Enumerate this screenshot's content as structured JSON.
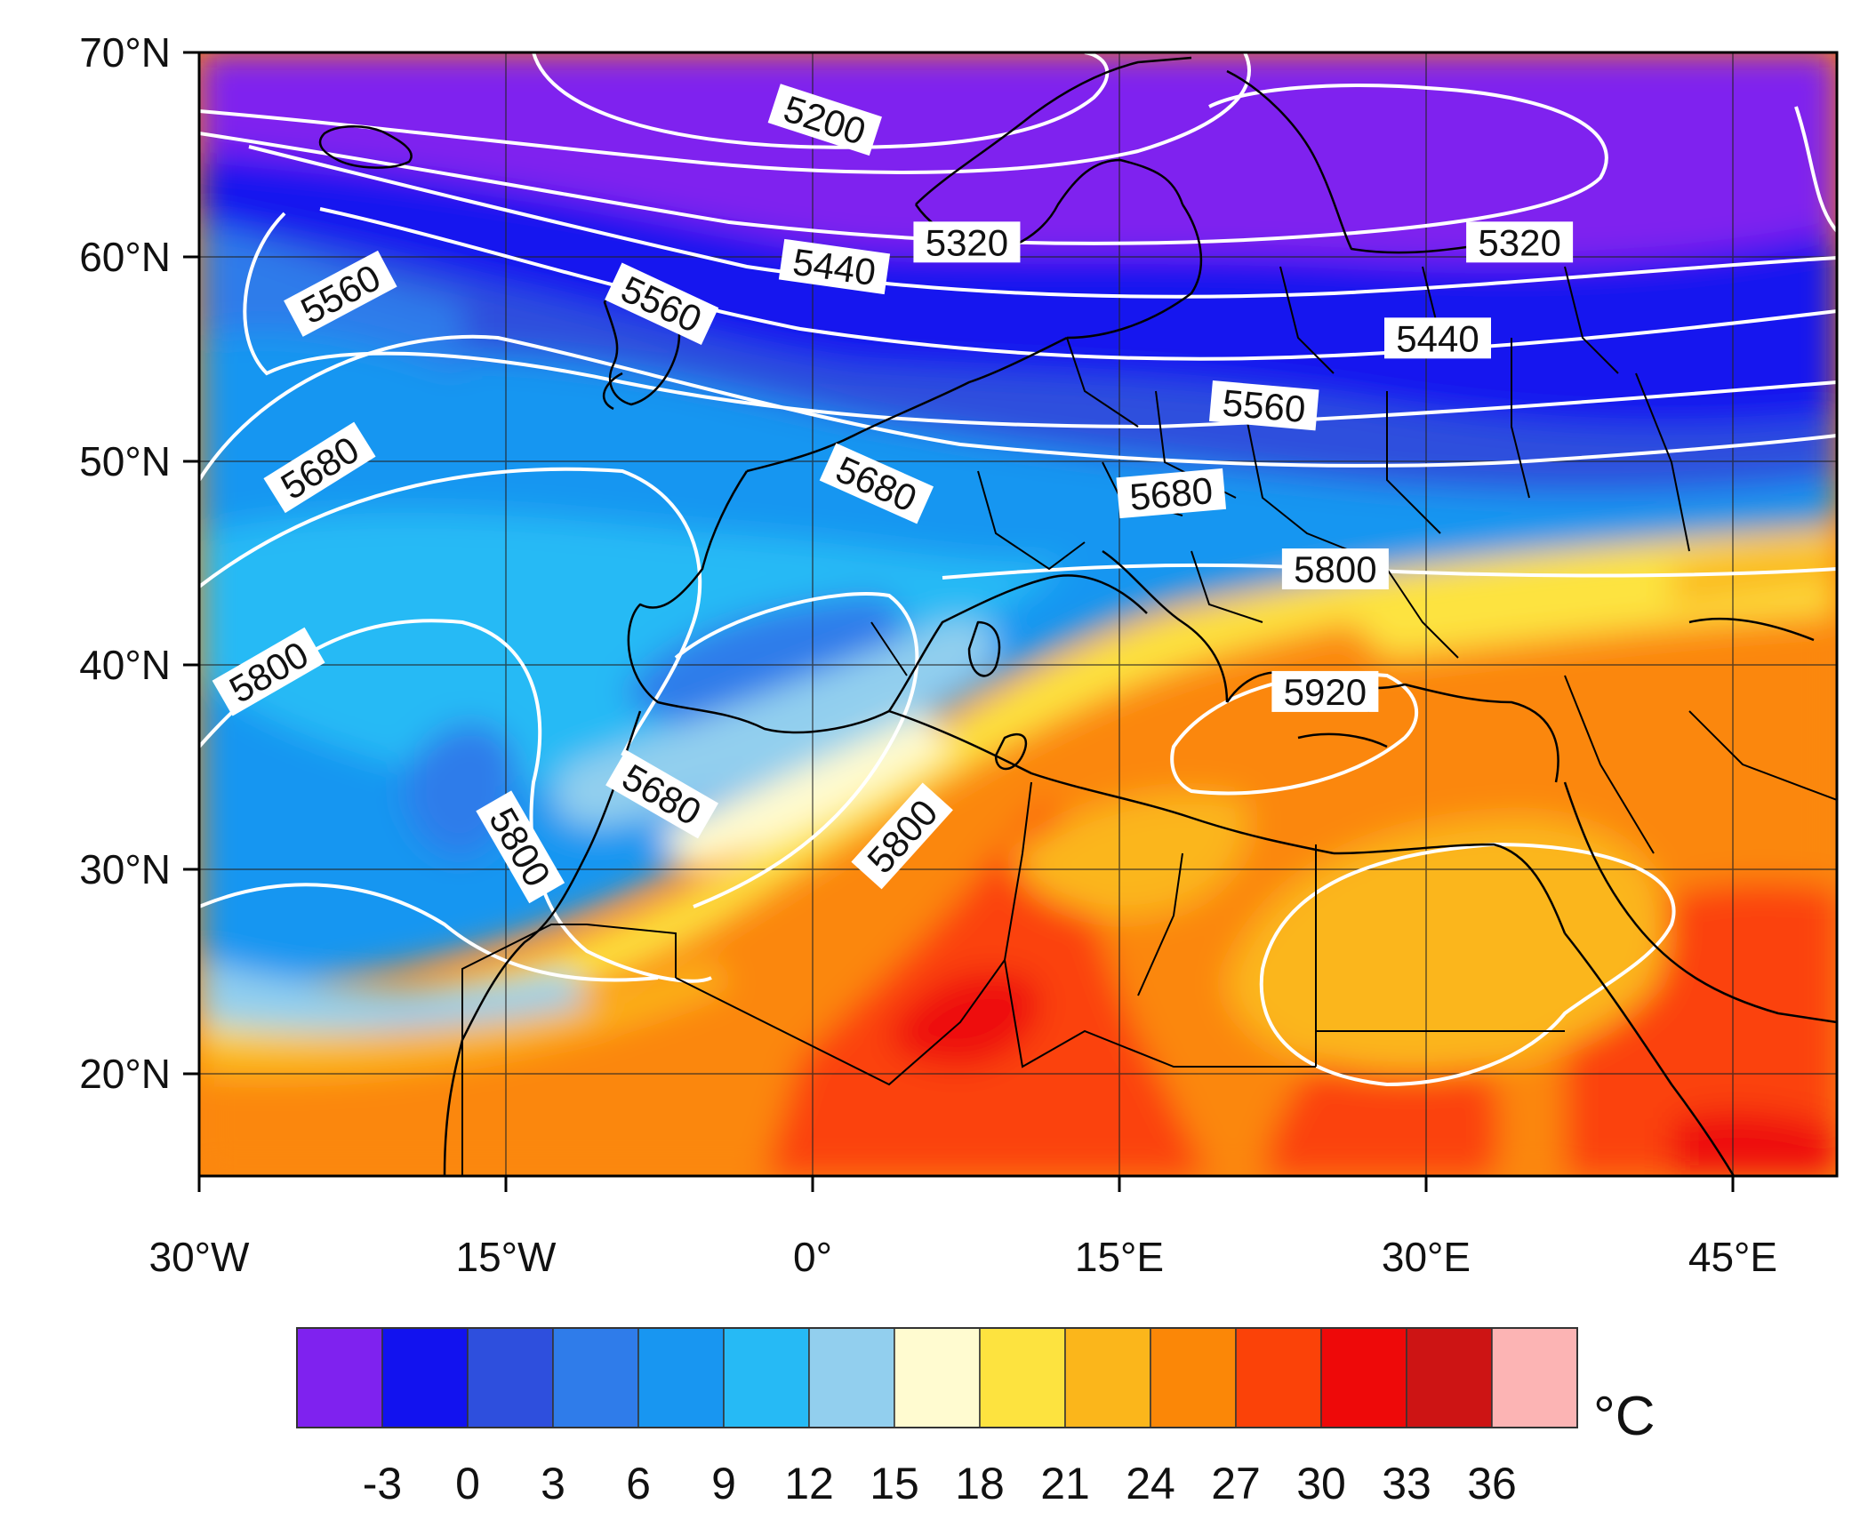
{
  "map": {
    "lat_ticks": [
      "70°N",
      "60°N",
      "50°N",
      "40°N",
      "30°N",
      "20°N"
    ],
    "lon_ticks": [
      "30°W",
      "15°W",
      "0°",
      "15°E",
      "30°E",
      "45°E"
    ],
    "extent": {
      "lon": [
        -30,
        50
      ],
      "lat": [
        15,
        70
      ]
    }
  },
  "colorbar": {
    "colors": [
      "#7f22ef",
      "#1212ef",
      "#2e4fdd",
      "#2f7cea",
      "#1896f1",
      "#26baf5",
      "#92cfee",
      "#fffbd0",
      "#fde33f",
      "#fbb61b",
      "#fb8707",
      "#fb4208",
      "#ee0909",
      "#cd1414",
      "#fcb4b4"
    ],
    "labels": [
      "-3",
      "0",
      "3",
      "6",
      "9",
      "12",
      "15",
      "18",
      "21",
      "24",
      "27",
      "30",
      "33",
      "36"
    ],
    "unit": "°C"
  },
  "contour_labels": [
    {
      "text": "5200",
      "lon": 0.5,
      "lat": 66.5,
      "rot": 18
    },
    {
      "text": "5320",
      "lon": 7.5,
      "lat": 60.5,
      "rot": 0
    },
    {
      "text": "5320",
      "lon": 34.5,
      "lat": 60.5,
      "rot": 0
    },
    {
      "text": "5440",
      "lon": 1,
      "lat": 59.3,
      "rot": 8
    },
    {
      "text": "5440",
      "lon": 30.5,
      "lat": 55.8,
      "rot": 0
    },
    {
      "text": "5560",
      "lon": -23,
      "lat": 58,
      "rot": -28
    },
    {
      "text": "5560",
      "lon": -7.5,
      "lat": 57.5,
      "rot": 25
    },
    {
      "text": "5560",
      "lon": 22,
      "lat": 52.5,
      "rot": 5
    },
    {
      "text": "5680",
      "lon": -24,
      "lat": 49.5,
      "rot": -32
    },
    {
      "text": "5680",
      "lon": 3,
      "lat": 48.7,
      "rot": 24
    },
    {
      "text": "5680",
      "lon": 17.5,
      "lat": 48.2,
      "rot": -5
    },
    {
      "text": "5800",
      "lon": -26.5,
      "lat": 39.5,
      "rot": -30
    },
    {
      "text": "5800",
      "lon": 25.5,
      "lat": 44.5,
      "rot": 0
    },
    {
      "text": "5800",
      "lon": -14.5,
      "lat": 31,
      "rot": 60
    },
    {
      "text": "5800",
      "lon": 4.5,
      "lat": 31.5,
      "rot": -48
    },
    {
      "text": "5680",
      "lon": -7.5,
      "lat": 33.5,
      "rot": 30
    },
    {
      "text": "5920",
      "lon": 25,
      "lat": 38.5,
      "rot": 0
    }
  ]
}
